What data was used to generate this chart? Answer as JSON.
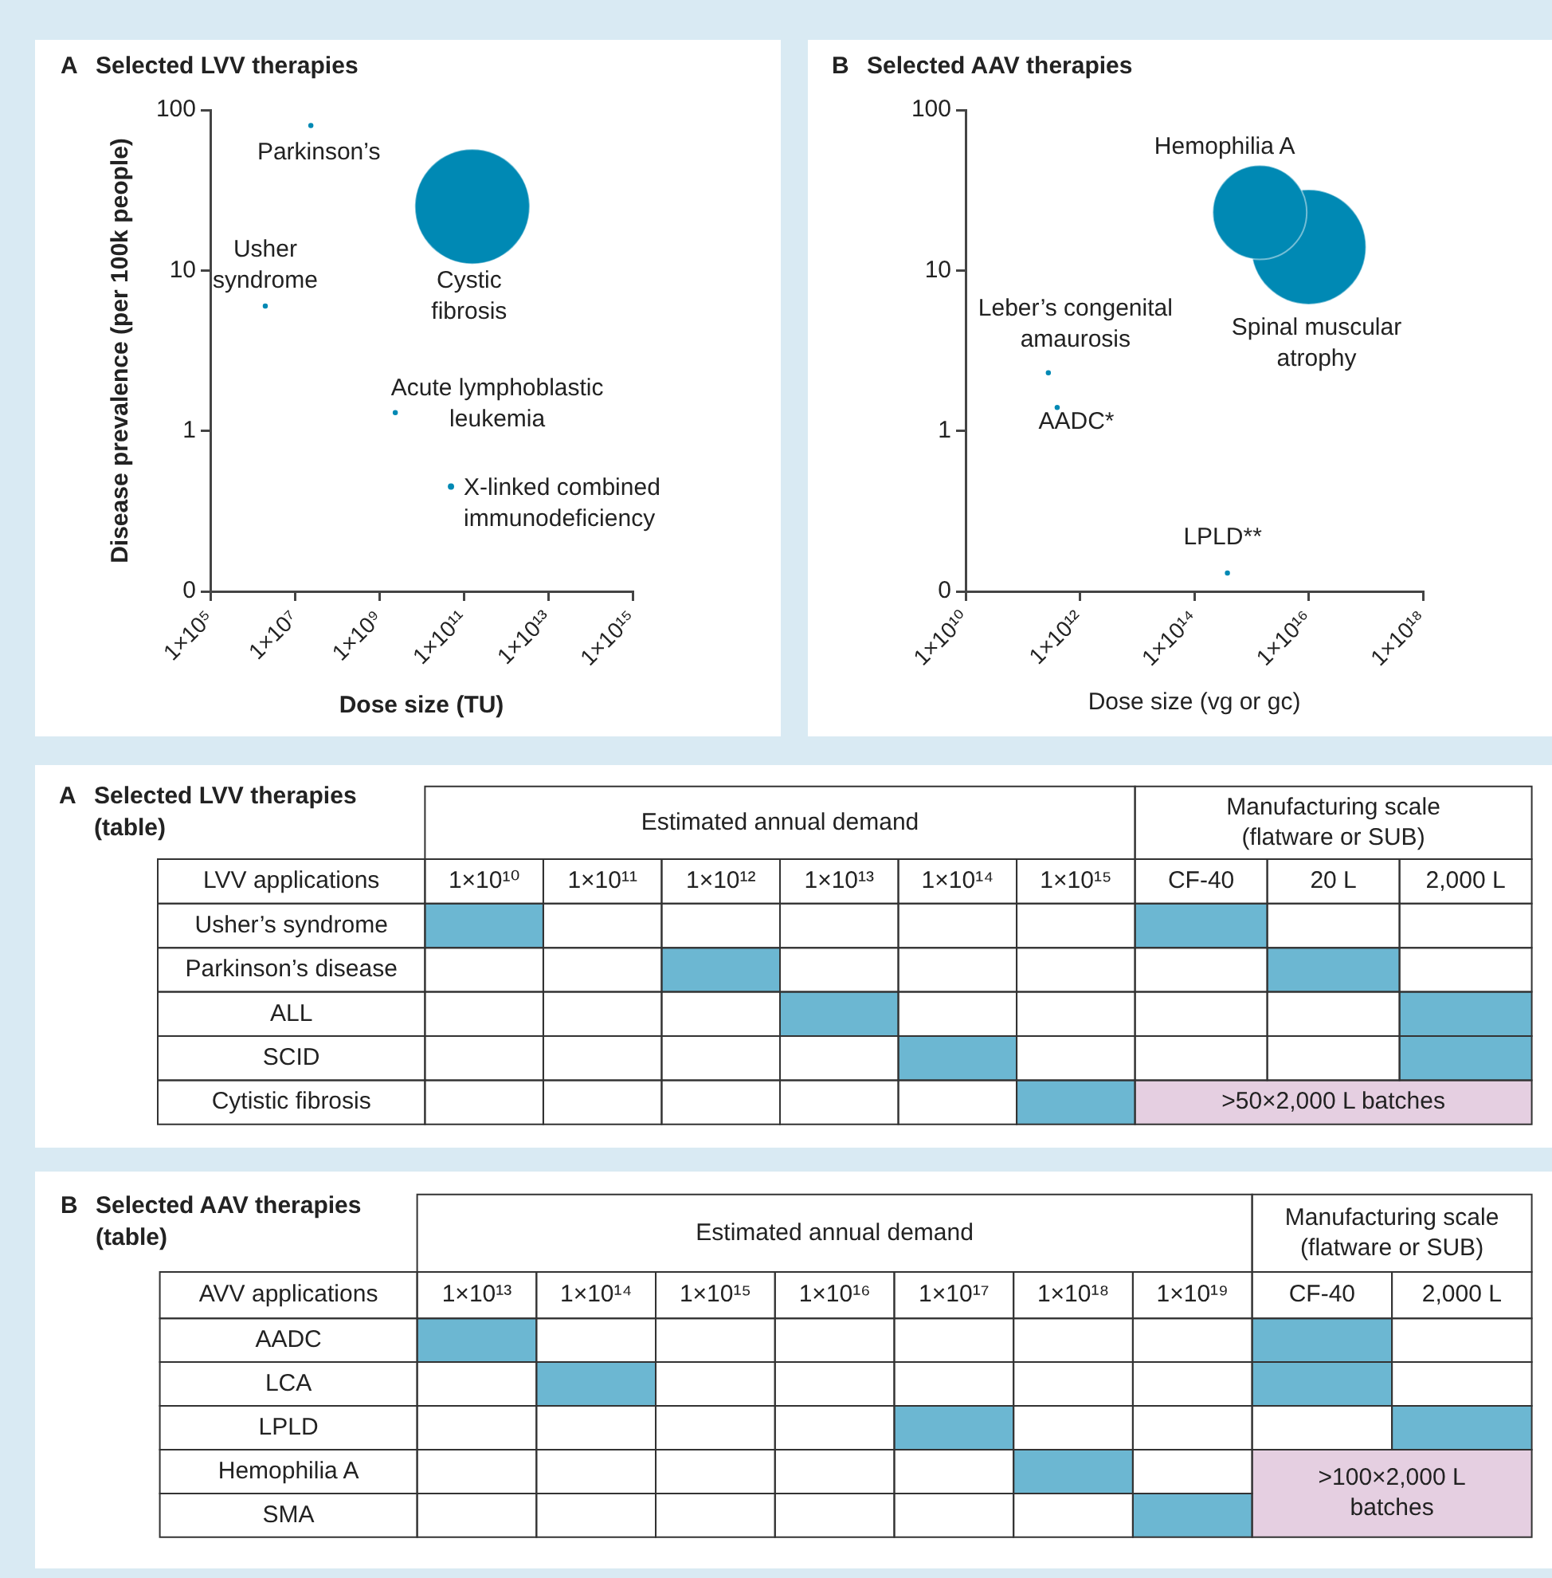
{
  "chart_data": [
    {
      "type": "bubble",
      "title": "A Selected LVV therapies",
      "xlabel": "Dose size (TU)",
      "ylabel": "Disease prevalence (per 100k people)",
      "log": "xy",
      "xlim": [
        100000.0,
        1000000000000000.0
      ],
      "xticks": [
        {
          "value": 100000.0,
          "label": "1×10⁵"
        },
        {
          "value": 10000000.0,
          "label": "1×10⁷"
        },
        {
          "value": 1000000000.0,
          "label": "1×10⁹"
        },
        {
          "value": 100000000000.0,
          "label": "1×10¹¹"
        },
        {
          "value": 10000000000000.0,
          "label": "1×10¹³"
        },
        {
          "value": 1000000000000000.0,
          "label": "1×10¹⁵"
        }
      ],
      "ylim": [
        0.1,
        100
      ],
      "yticks": [
        {
          "value": 0.1,
          "label": "0"
        },
        1,
        10,
        100
      ],
      "series": [
        {
          "name": "Parkinson’s",
          "color": "#0089b4",
          "x": [
            24000000.0
          ],
          "values": [
            80
          ],
          "sizes": [
            0.002
          ]
        },
        {
          "name": "Usher syndrome",
          "color": "#0089b4",
          "x": [
            2000000.0
          ],
          "values": [
            6
          ],
          "sizes": [
            0.002
          ]
        },
        {
          "name": "Cystic fibrosis",
          "color": "#0089b4",
          "x": [
            160000000000.0
          ],
          "values": [
            25
          ],
          "sizes": [
            1
          ]
        },
        {
          "name": "Acute lymphoblastic leukemia",
          "color": "#0089b4",
          "x": [
            2400000000.0
          ],
          "values": [
            1.3
          ],
          "sizes": [
            0.002
          ]
        },
        {
          "name": "X-linked combined immunodeficiency",
          "color": "#0089b4",
          "x": [
            50000000000.0
          ],
          "values": [
            0.45
          ],
          "sizes": [
            0.003
          ]
        }
      ]
    },
    {
      "type": "bubble",
      "title": "B Selected AAV therapies",
      "xlabel": "Dose size (vg or gc)",
      "log": "xy",
      "xlim": [
        10000000000.0,
        1e+18
      ],
      "xticks": [
        {
          "value": 10000000000.0,
          "label": "1×10¹⁰"
        },
        {
          "value": 1000000000000.0,
          "label": "1×10¹²"
        },
        {
          "value": 100000000000000.0,
          "label": "1×10¹⁴"
        },
        {
          "value": 1e+16,
          "label": "1×10¹⁶"
        },
        {
          "value": 1e+18,
          "label": "1×10¹⁸"
        }
      ],
      "ylim": [
        0.1,
        100
      ],
      "yticks": [
        {
          "value": 0.1,
          "label": "0"
        },
        1,
        10,
        100
      ],
      "series": [
        {
          "name": "Hemophilia A",
          "color": "#0089b4",
          "x": [
            1400000000000000.0
          ],
          "values": [
            23
          ],
          "sizes": [
            0.67
          ]
        },
        {
          "name": "Spinal muscular atrophy",
          "color": "#0089b4",
          "x": [
            1e+16
          ],
          "values": [
            14
          ],
          "sizes": [
            1
          ]
        },
        {
          "name": "Leber’s congenital amaurosis",
          "color": "#0089b4",
          "x": [
            280000000000.0
          ],
          "values": [
            2.3
          ],
          "sizes": [
            0.002
          ]
        },
        {
          "name": "AADC*",
          "color": "#0089b4",
          "x": [
            400000000000.0
          ],
          "values": [
            1.4
          ],
          "sizes": [
            0.002
          ]
        },
        {
          "name": "LPLD**",
          "color": "#0089b4",
          "x": [
            380000000000000.0
          ],
          "values": [
            0.13
          ],
          "sizes": [
            0.002
          ]
        }
      ]
    },
    {
      "type": "heatmap",
      "title": "A Selected LVV therapies (table)",
      "ylabel": "LVV applications",
      "annotations": [
        "Estimated annual demand",
        "Manufacturing scale (flatware or SUB)"
      ],
      "categories": [
        "1×10¹⁰",
        "1×10¹¹",
        "1×10¹²",
        "1×10¹³",
        "1×10¹⁴",
        "1×10¹⁵",
        "CF-40",
        "20 L",
        "2,000 L"
      ],
      "y_categories": [
        "Usher’s syndrome",
        "Parkinson’s disease",
        "ALL",
        "SCID",
        "Cytistic fibrosis"
      ],
      "color": "#6cb7d2",
      "cells": [
        [
          true,
          null,
          null,
          null,
          null,
          null,
          true,
          null,
          null
        ],
        [
          null,
          null,
          true,
          null,
          null,
          null,
          null,
          true,
          null
        ],
        [
          null,
          null,
          null,
          true,
          null,
          null,
          null,
          null,
          true
        ],
        [
          null,
          null,
          null,
          null,
          true,
          null,
          null,
          null,
          true
        ],
        [
          null,
          null,
          null,
          null,
          null,
          true,
          null,
          null,
          null
        ]
      ],
      "cell_labels": [
        [
          null,
          null,
          null,
          null,
          null,
          null,
          null,
          null,
          null
        ],
        [
          null,
          null,
          null,
          null,
          null,
          null,
          null,
          null,
          null
        ],
        [
          null,
          null,
          null,
          null,
          null,
          null,
          null,
          null,
          null
        ],
        [
          null,
          null,
          null,
          null,
          null,
          null,
          null,
          null,
          null
        ],
        [
          null,
          null,
          null,
          null,
          null,
          null,
          ">50×2,000 L batches",
          null,
          null
        ]
      ]
    },
    {
      "type": "heatmap",
      "title": "B Selected AAV therapies (table)",
      "ylabel": "AVV applications",
      "annotations": [
        "Estimated annual demand",
        "Manufacturing scale (flatware or SUB)"
      ],
      "categories": [
        "1×10¹³",
        "1×10¹⁴",
        "1×10¹⁵",
        "1×10¹⁶",
        "1×10¹⁷",
        "1×10¹⁸",
        "1×10¹⁹",
        "CF-40",
        "2,000 L"
      ],
      "y_categories": [
        "AADC",
        "LCA",
        "LPLD",
        "Hemophilia A",
        "SMA"
      ],
      "color": "#6cb7d2",
      "cells": [
        [
          true,
          null,
          null,
          null,
          null,
          null,
          null,
          true,
          null
        ],
        [
          null,
          true,
          null,
          null,
          null,
          null,
          null,
          true,
          null
        ],
        [
          null,
          null,
          null,
          null,
          true,
          null,
          null,
          null,
          true
        ],
        [
          null,
          null,
          null,
          null,
          null,
          true,
          null,
          null,
          null
        ],
        [
          null,
          null,
          null,
          null,
          null,
          null,
          true,
          null,
          null
        ]
      ],
      "cell_labels": [
        [
          null,
          null,
          null,
          null,
          null,
          null,
          null,
          null,
          null
        ],
        [
          null,
          null,
          null,
          null,
          null,
          null,
          null,
          null,
          null
        ],
        [
          null,
          null,
          null,
          null,
          null,
          null,
          null,
          null,
          null
        ],
        [
          null,
          null,
          null,
          null,
          null,
          null,
          null,
          ">100×2,000 L batches",
          null
        ],
        [
          null,
          null,
          null,
          null,
          null,
          null,
          null,
          null,
          null
        ]
      ]
    }
  ]
}
